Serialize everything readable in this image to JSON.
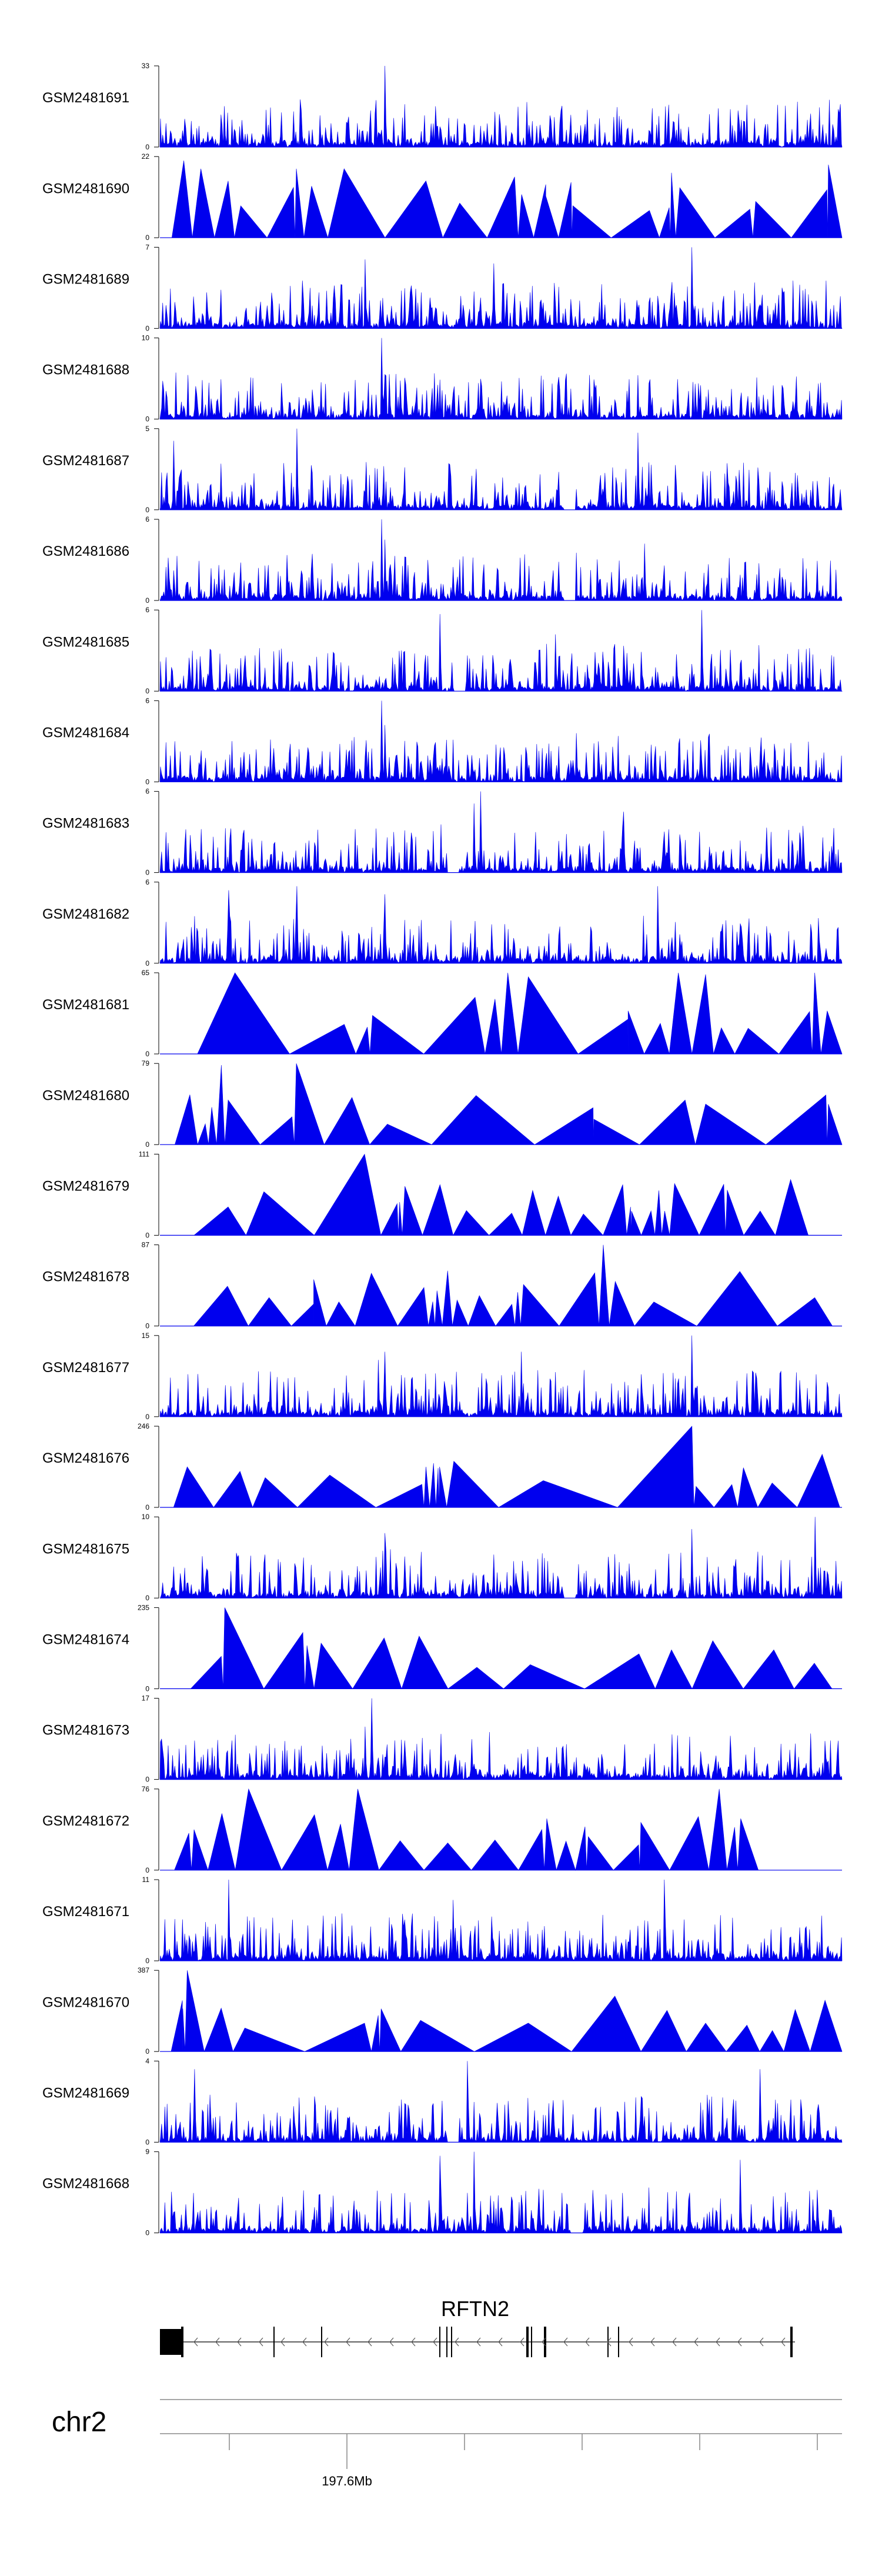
{
  "chart_data": {
    "type": "area",
    "title": "",
    "xlabel": "",
    "ylabel": "",
    "color": "#0000EE",
    "gene": "RFTN2",
    "chromosome": "chr2",
    "position_label": "197.6Mb",
    "series": [
      {
        "name": "GSM2481691",
        "ymax": 33,
        "ymax_label": "33",
        "ymin_label": "0",
        "style": "dense",
        "seed": 11,
        "peaks": [
          [
            0.33,
            1.0
          ],
          [
            0.32,
            0.18
          ]
        ]
      },
      {
        "name": "GSM2481690",
        "ymax": 22,
        "ymax_label": "22",
        "ymin_label": "0",
        "style": "tri",
        "seed": 12,
        "peaks": [
          [
            0.035,
            0.95
          ],
          [
            0.06,
            0.85
          ],
          [
            0.1,
            0.7
          ],
          [
            0.2,
            0.85
          ],
          [
            0.27,
            0.85
          ],
          [
            0.39,
            0.7
          ],
          [
            0.52,
            0.75
          ],
          [
            0.75,
            0.8
          ],
          [
            0.98,
            0.9
          ]
        ]
      },
      {
        "name": "GSM2481689",
        "ymax": 7,
        "ymax_label": "7",
        "ymin_label": "0",
        "style": "dense",
        "seed": 13,
        "peaks": [
          [
            0.78,
            1.0
          ],
          [
            0.49,
            0.8
          ],
          [
            0.3,
            0.85
          ]
        ]
      },
      {
        "name": "GSM2481688",
        "ymax": 10,
        "ymax_label": "10",
        "ymin_label": "0",
        "style": "dense",
        "seed": 14,
        "peaks": [
          [
            0.325,
            1.0
          ],
          [
            0.33,
            0.55
          ]
        ]
      },
      {
        "name": "GSM2481687",
        "ymax": 5,
        "ymax_label": "5",
        "ymin_label": "0",
        "style": "dense",
        "seed": 15,
        "peaks": [
          [
            0.02,
            0.85
          ],
          [
            0.2,
            1.0
          ],
          [
            0.7,
            0.95
          ]
        ],
        "notch": 0.6
      },
      {
        "name": "GSM2481686",
        "ymax": 6,
        "ymax_label": "6",
        "ymin_label": "0",
        "style": "dense",
        "seed": 16,
        "peaks": [
          [
            0.325,
            1.0
          ],
          [
            0.33,
            0.75
          ],
          [
            0.71,
            0.7
          ]
        ],
        "notch": 0.6
      },
      {
        "name": "GSM2481685",
        "ymax": 6,
        "ymax_label": "6",
        "ymin_label": "0",
        "style": "dense",
        "seed": 17,
        "peaks": [
          [
            0.41,
            0.95
          ],
          [
            0.795,
            1.0
          ],
          [
            0.58,
            0.7
          ]
        ],
        "notch": 0.44
      },
      {
        "name": "GSM2481684",
        "ymax": 6,
        "ymax_label": "6",
        "ymin_label": "0",
        "style": "dense",
        "seed": 18,
        "peaks": [
          [
            0.325,
            1.0
          ],
          [
            0.33,
            0.7
          ],
          [
            0.61,
            0.6
          ]
        ]
      },
      {
        "name": "GSM2481683",
        "ymax": 6,
        "ymax_label": "6",
        "ymin_label": "0",
        "style": "dense",
        "seed": 19,
        "peaks": [
          [
            0.47,
            1.0
          ],
          [
            0.46,
            0.85
          ],
          [
            0.68,
            0.75
          ]
        ],
        "notch": 0.43
      },
      {
        "name": "GSM2481682",
        "ymax": 6,
        "ymax_label": "6",
        "ymin_label": "0",
        "style": "dense",
        "seed": 20,
        "peaks": [
          [
            0.1,
            0.9
          ],
          [
            0.2,
            0.95
          ],
          [
            0.73,
            0.95
          ],
          [
            0.33,
            0.85
          ]
        ]
      },
      {
        "name": "GSM2481681",
        "ymax": 65,
        "ymax_label": "65",
        "ymin_label": "0",
        "style": "tri",
        "seed": 21,
        "peaks": [
          [
            0.11,
            1.0
          ],
          [
            0.51,
            1.0
          ],
          [
            0.54,
            0.95
          ],
          [
            0.76,
            1.0
          ],
          [
            0.8,
            0.98
          ],
          [
            0.96,
            1.0
          ]
        ]
      },
      {
        "name": "GSM2481680",
        "ymax": 79,
        "ymax_label": "79",
        "ymin_label": "0",
        "style": "tri",
        "seed": 22,
        "peaks": [
          [
            0.09,
            0.98
          ],
          [
            0.2,
            1.0
          ],
          [
            0.1,
            0.55
          ],
          [
            0.77,
            0.55
          ],
          [
            0.8,
            0.5
          ],
          [
            0.98,
            0.5
          ]
        ]
      },
      {
        "name": "GSM2481679",
        "ymax": 111,
        "ymax_label": "111",
        "ymin_label": "0",
        "style": "tri",
        "seed": 23,
        "peaks": [
          [
            0.3,
            1.0
          ],
          [
            0.1,
            0.35
          ],
          [
            0.69,
            0.35
          ],
          [
            0.72,
            0.3
          ],
          [
            0.74,
            0.3
          ],
          [
            0.88,
            0.3
          ]
        ]
      },
      {
        "name": "GSM2481678",
        "ymax": 87,
        "ymax_label": "87",
        "ymin_label": "0",
        "style": "tri",
        "seed": 24,
        "peaks": [
          [
            0.65,
            1.0
          ],
          [
            0.31,
            0.65
          ],
          [
            0.4,
            0.3
          ],
          [
            0.16,
            0.35
          ],
          [
            0.96,
            0.35
          ]
        ]
      },
      {
        "name": "GSM2481677",
        "ymax": 15,
        "ymax_label": "15",
        "ymin_label": "0",
        "style": "dense",
        "seed": 25,
        "peaks": [
          [
            0.78,
            1.0
          ],
          [
            0.53,
            0.8
          ],
          [
            0.33,
            0.8
          ],
          [
            0.32,
            0.7
          ]
        ]
      },
      {
        "name": "GSM2481676",
        "ymax": 246,
        "ymax_label": "246",
        "ymin_label": "0",
        "style": "tri",
        "seed": 26,
        "peaks": [
          [
            0.78,
            1.0
          ],
          [
            0.04,
            0.5
          ],
          [
            0.39,
            0.5
          ],
          [
            0.41,
            0.5
          ]
        ]
      },
      {
        "name": "GSM2481675",
        "ymax": 10,
        "ymax_label": "10",
        "ymin_label": "0",
        "style": "dense",
        "seed": 27,
        "peaks": [
          [
            0.96,
            1.0
          ],
          [
            0.78,
            0.85
          ],
          [
            0.33,
            0.8
          ]
        ],
        "notch": 0.6
      },
      {
        "name": "GSM2481674",
        "ymax": 235,
        "ymax_label": "235",
        "ymin_label": "0",
        "style": "tri",
        "seed": 28,
        "peaks": [
          [
            0.095,
            1.0
          ],
          [
            0.09,
            0.4
          ],
          [
            0.75,
            0.48
          ],
          [
            0.9,
            0.48
          ]
        ]
      },
      {
        "name": "GSM2481673",
        "ymax": 17,
        "ymax_label": "17",
        "ymin_label": "0",
        "style": "dense",
        "seed": 29,
        "peaks": [
          [
            0.31,
            1.0
          ],
          [
            0.3,
            0.65
          ],
          [
            0.28,
            0.5
          ]
        ]
      },
      {
        "name": "GSM2481672",
        "ymax": 76,
        "ymax_label": "76",
        "ymin_label": "0",
        "style": "tri",
        "seed": 30,
        "peaks": [
          [
            0.13,
            1.0
          ],
          [
            0.29,
            1.0
          ],
          [
            0.82,
            1.0
          ],
          [
            0.05,
            0.5
          ],
          [
            0.56,
            0.5
          ]
        ]
      },
      {
        "name": "GSM2481671",
        "ymax": 11,
        "ymax_label": "11",
        "ymin_label": "0",
        "style": "dense",
        "seed": 31,
        "peaks": [
          [
            0.1,
            1.0
          ],
          [
            0.74,
            1.0
          ],
          [
            0.43,
            0.75
          ]
        ]
      },
      {
        "name": "GSM2481670",
        "ymax": 387,
        "ymax_label": "387",
        "ymin_label": "0",
        "style": "tri",
        "seed": 32,
        "peaks": [
          [
            0.04,
            1.0
          ],
          [
            0.3,
            0.35
          ],
          [
            0.54,
            0.35
          ],
          [
            0.8,
            0.35
          ]
        ]
      },
      {
        "name": "GSM2481669",
        "ymax": 4,
        "ymax_label": "4",
        "ymin_label": "0",
        "style": "dense",
        "seed": 33,
        "peaks": [
          [
            0.45,
            1.0
          ],
          [
            0.05,
            0.9
          ],
          [
            0.88,
            0.9
          ]
        ],
        "notch": 0.43
      },
      {
        "name": "GSM2481668",
        "ymax": 9,
        "ymax_label": "9",
        "ymin_label": "0",
        "style": "dense",
        "seed": 34,
        "peaks": [
          [
            0.46,
            1.0
          ],
          [
            0.41,
            0.95
          ],
          [
            0.85,
            0.9
          ]
        ],
        "notch": 0.61
      }
    ]
  }
}
